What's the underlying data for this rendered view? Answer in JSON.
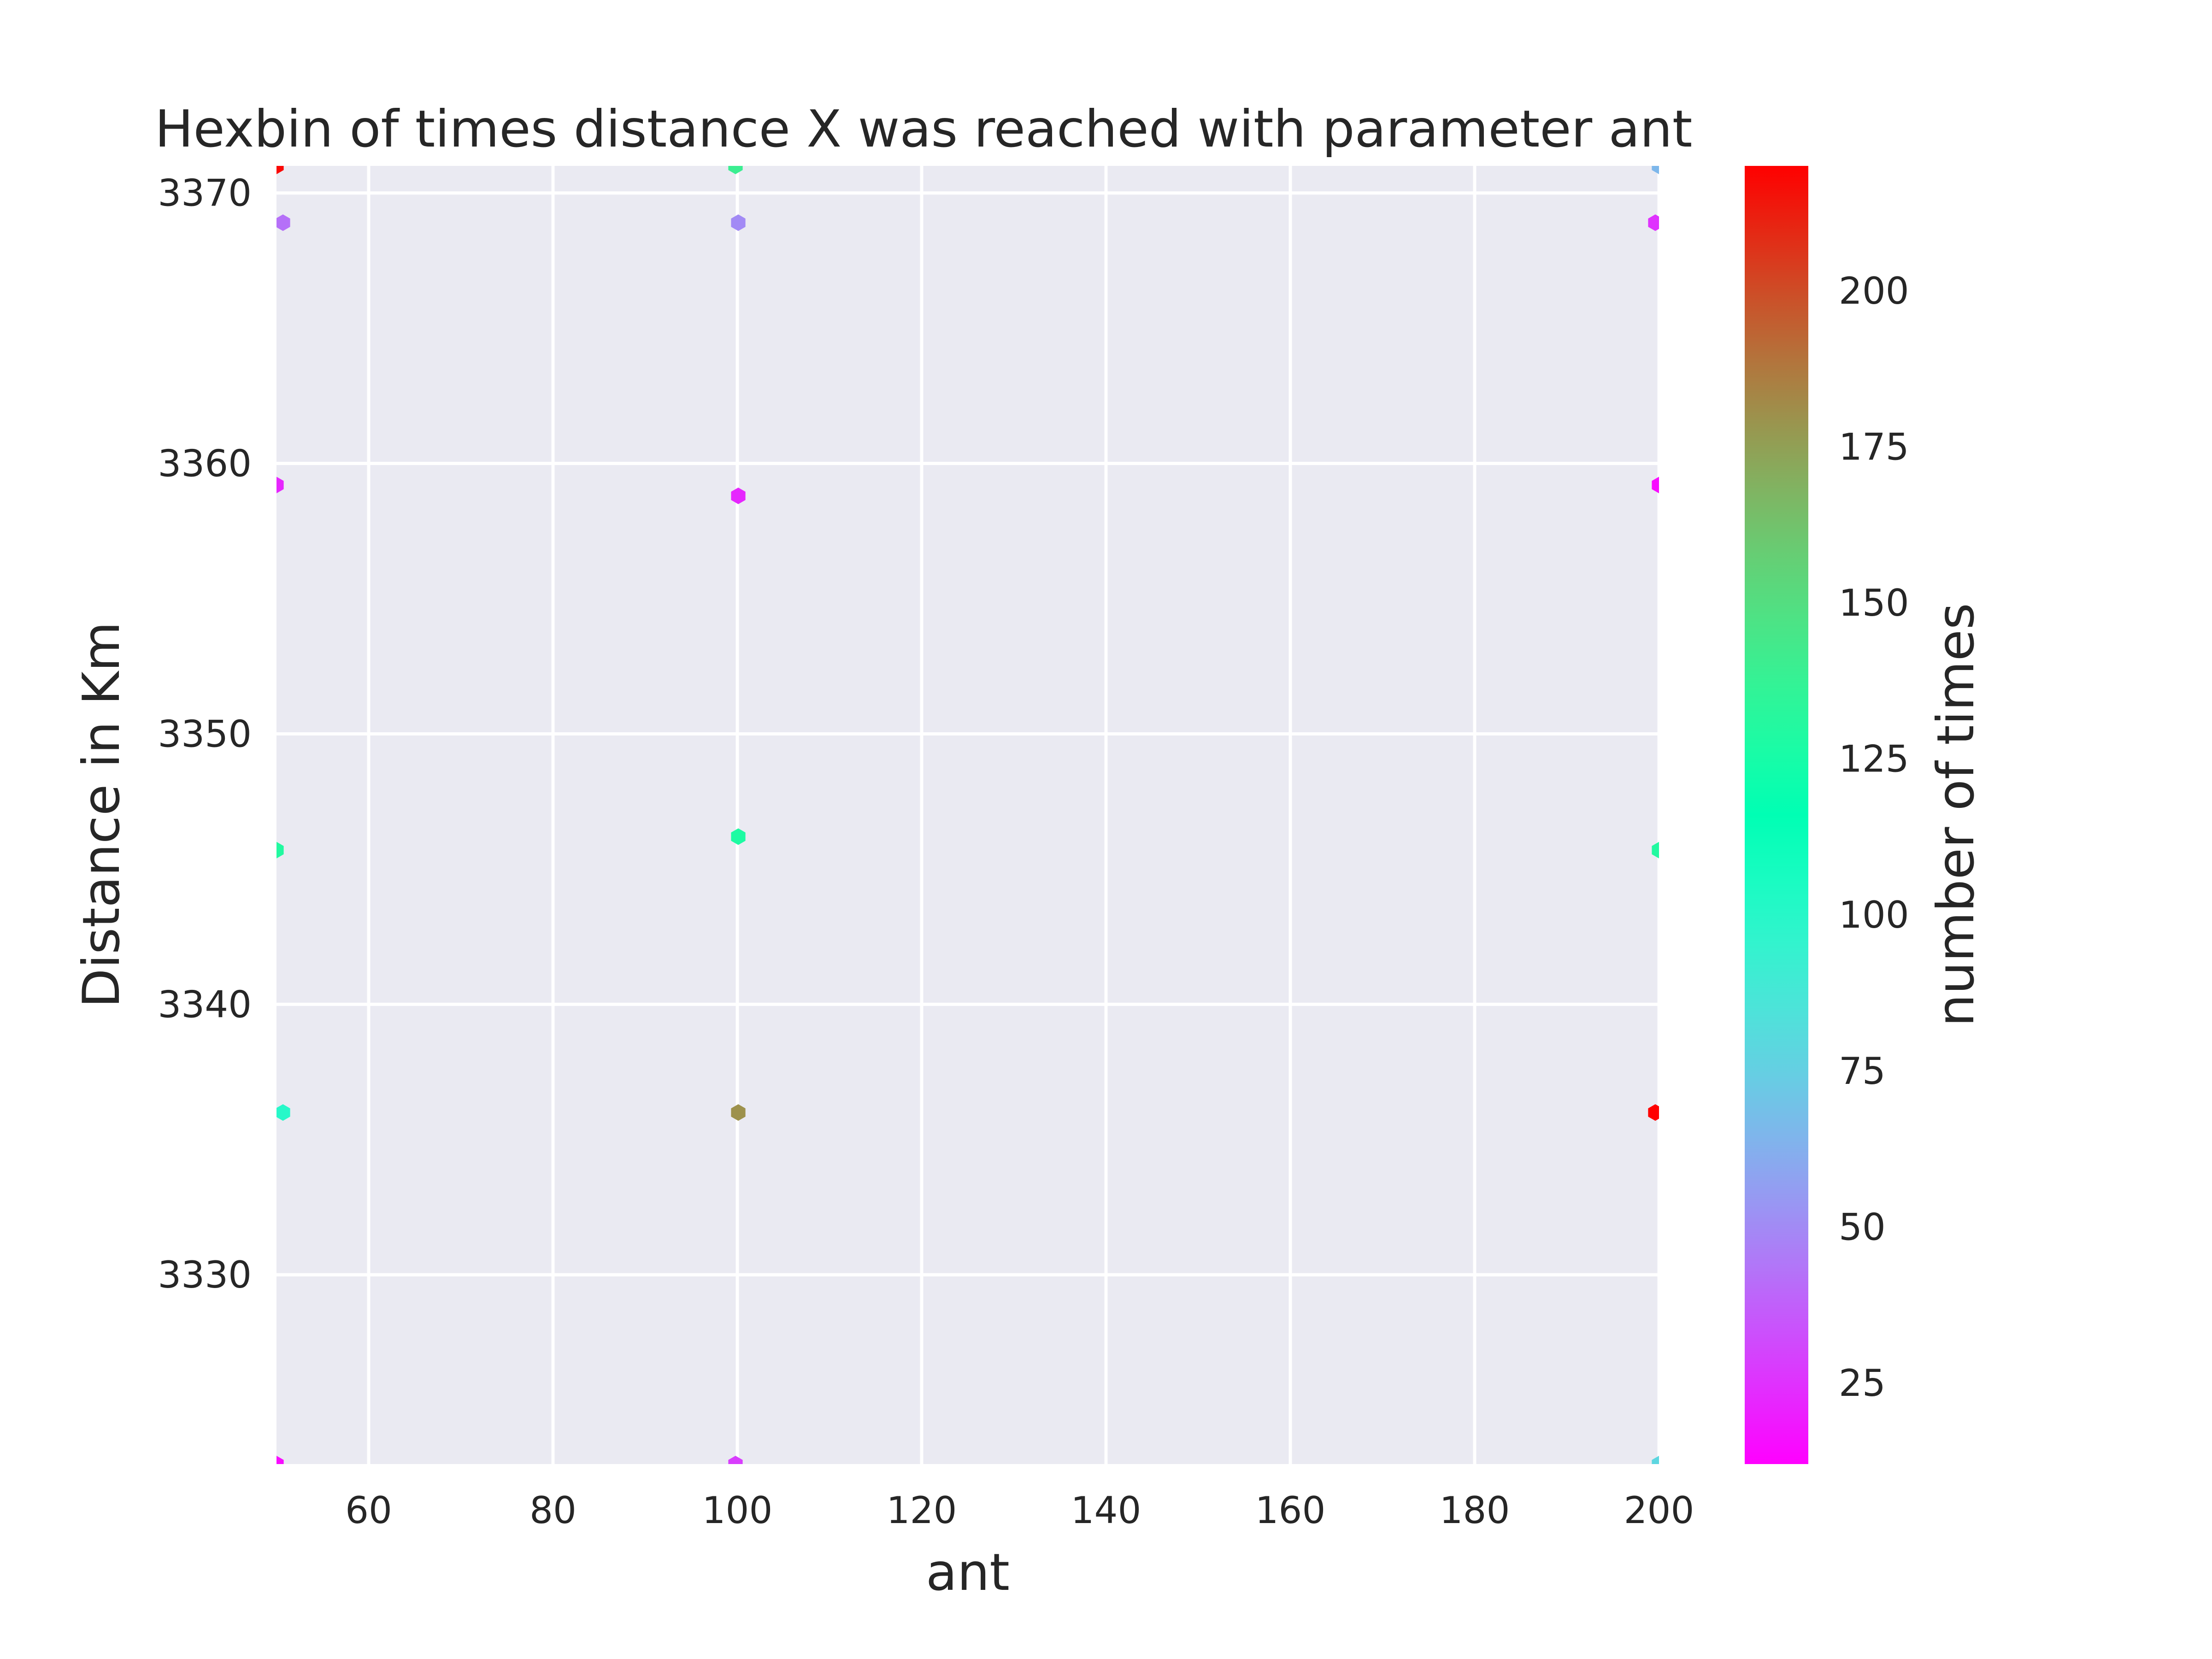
{
  "chart_data": {
    "type": "hexbin",
    "title": "Hexbin of times distance X was reached with parameter ant",
    "xlabel": "ant",
    "ylabel": "Distance in Km",
    "colorbar_label": "number of times",
    "xlim": [
      50,
      200
    ],
    "ylim": [
      3323,
      3371
    ],
    "xticks": [
      60,
      80,
      100,
      120,
      140,
      160,
      180,
      200
    ],
    "yticks": [
      3330,
      3340,
      3350,
      3360,
      3370
    ],
    "colorbar_ticks": [
      25,
      50,
      75,
      100,
      125,
      150,
      175,
      200
    ],
    "colorbar_range": [
      12,
      220
    ],
    "colormap": "rainbow",
    "grid": true,
    "background_color": "#eaeaf2",
    "points": [
      {
        "x": 50,
        "y": 3371,
        "count": 218
      },
      {
        "x": 50.7,
        "y": 3368.9,
        "count": 42
      },
      {
        "x": 50,
        "y": 3359.2,
        "count": 22
      },
      {
        "x": 50,
        "y": 3345.7,
        "count": 130
      },
      {
        "x": 50.7,
        "y": 3336,
        "count": 100
      },
      {
        "x": 50,
        "y": 3323,
        "count": 15
      },
      {
        "x": 99.8,
        "y": 3371,
        "count": 140
      },
      {
        "x": 100.1,
        "y": 3368.9,
        "count": 50
      },
      {
        "x": 100.1,
        "y": 3358.8,
        "count": 22
      },
      {
        "x": 100.1,
        "y": 3346.2,
        "count": 128
      },
      {
        "x": 100.1,
        "y": 3336,
        "count": 180
      },
      {
        "x": 99.8,
        "y": 3323,
        "count": 28
      },
      {
        "x": 200,
        "y": 3371,
        "count": 65
      },
      {
        "x": 199.6,
        "y": 3368.9,
        "count": 25
      },
      {
        "x": 200,
        "y": 3359.2,
        "count": 15
      },
      {
        "x": 200,
        "y": 3345.7,
        "count": 130
      },
      {
        "x": 199.6,
        "y": 3336,
        "count": 220
      },
      {
        "x": 200,
        "y": 3323,
        "count": 78
      }
    ]
  }
}
